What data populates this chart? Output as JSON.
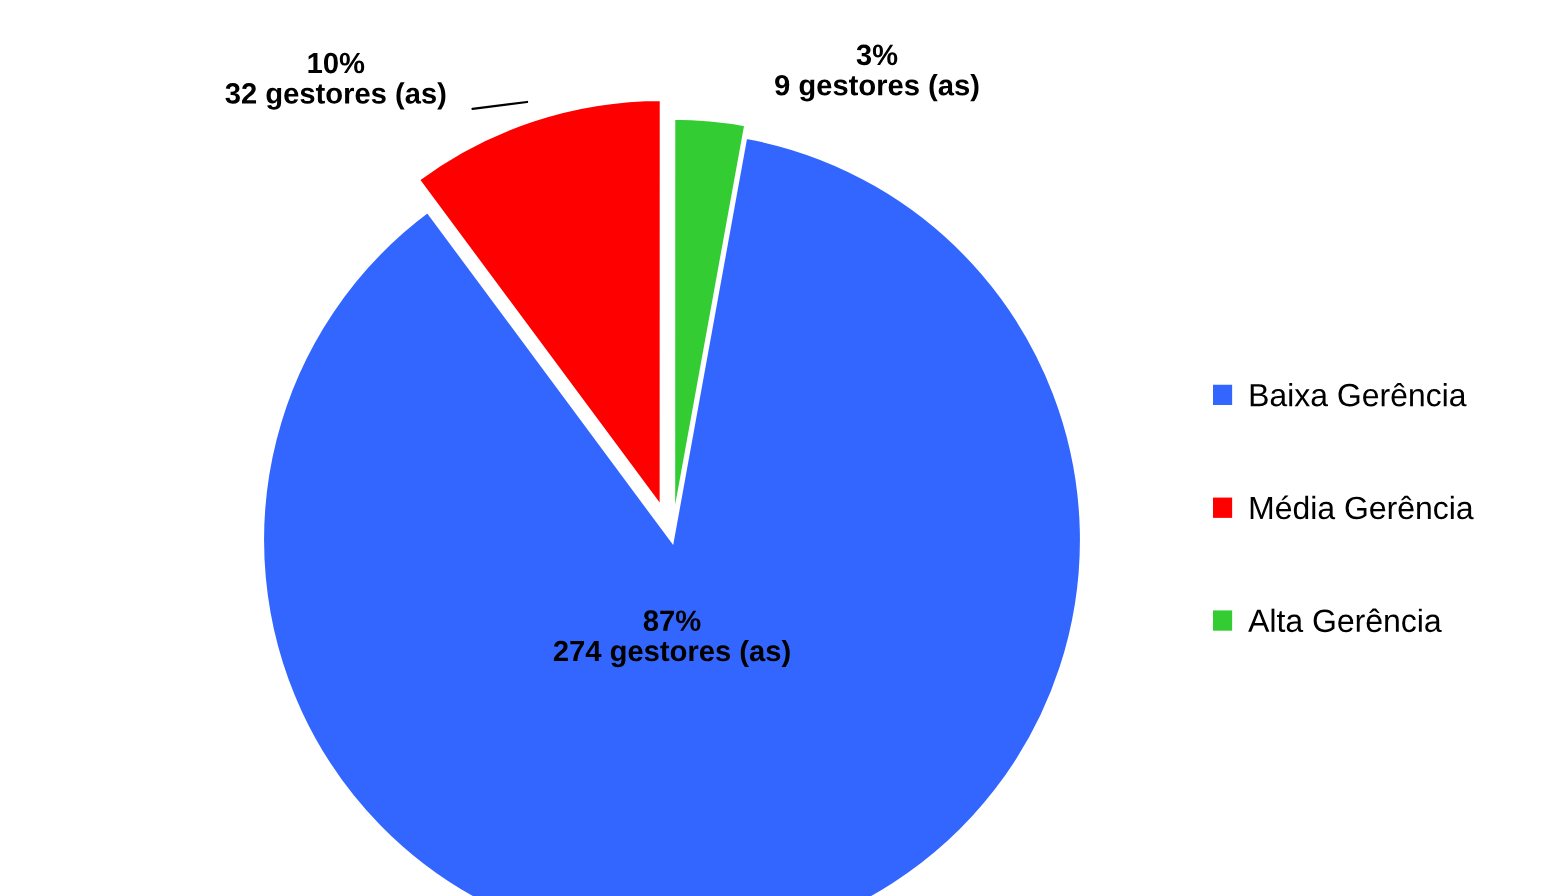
{
  "chart_data": {
    "type": "pie",
    "categories": [
      "Baixa Gerência",
      "Média Gerência",
      "Alta Gerência"
    ],
    "values": [
      274,
      32,
      9
    ],
    "colors": [
      "#3366ff",
      "#ff0000",
      "#33cc33"
    ],
    "value_labels": [
      "87%\n274 gestores (as)",
      "10%\n32 gestores (as)",
      "3%\n9 gestores (as)"
    ],
    "legend": "right"
  }
}
